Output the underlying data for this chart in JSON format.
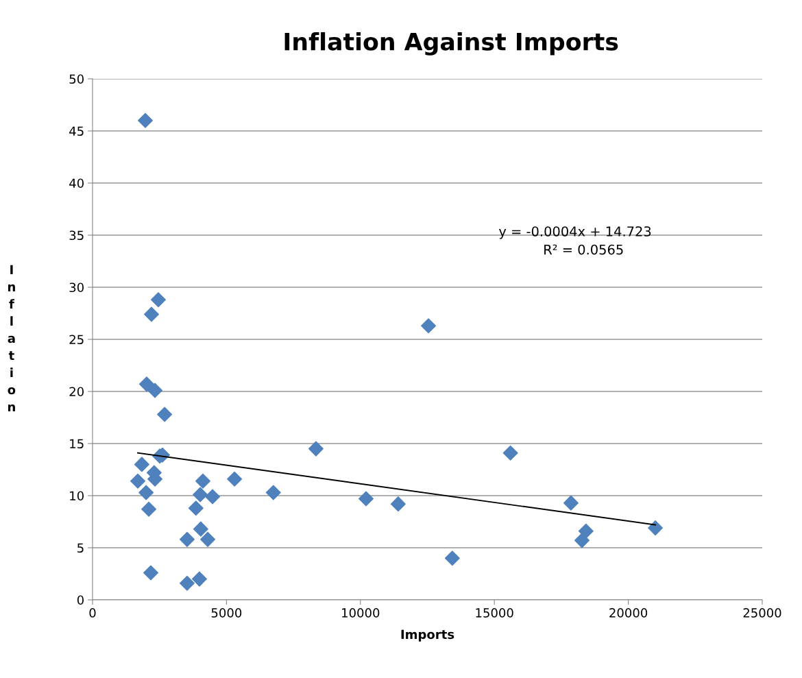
{
  "chart_data": {
    "type": "scatter",
    "title": "Inflation Against Imports",
    "xlabel": "Imports",
    "ylabel": "Inflation",
    "xlim": [
      0,
      25000
    ],
    "xticks": [
      0,
      5000,
      10000,
      15000,
      20000,
      25000
    ],
    "ylim": [
      0,
      50
    ],
    "yticks": [
      0,
      5,
      10,
      15,
      20,
      25,
      30,
      35,
      40,
      45,
      50
    ],
    "grid": "y",
    "annotations": [
      "y = -0.0004x + 14.723",
      "R² = 0.0565"
    ],
    "series": [
      {
        "marker": "diamond",
        "color": "#4f81bd",
        "x": [
          1970,
          2456,
          2200,
          2020,
          2330,
          2690,
          2510,
          2610,
          1840,
          2300,
          2330,
          1690,
          2000,
          2100,
          2175,
          3530,
          4040,
          4300,
          3860,
          4020,
          4120,
          4480,
          3530,
          3990,
          5300,
          6750,
          8340,
          10210,
          11410,
          12540,
          13430,
          15600,
          17860,
          18270,
          18420,
          21010
        ],
        "values": [
          46.0,
          28.8,
          27.4,
          20.7,
          20.1,
          17.8,
          13.8,
          13.9,
          13.0,
          12.2,
          11.6,
          11.4,
          10.3,
          8.7,
          2.6,
          5.8,
          6.8,
          5.8,
          8.8,
          10.1,
          11.4,
          9.9,
          1.6,
          2.0,
          11.6,
          10.3,
          14.5,
          9.7,
          9.2,
          26.3,
          4.0,
          14.1,
          9.3,
          5.7,
          6.6,
          6.9
        ]
      },
      {
        "type": "line",
        "color": "#000000",
        "x": [
          1690,
          21010
        ],
        "values": [
          14.1,
          7.2
        ]
      }
    ]
  }
}
